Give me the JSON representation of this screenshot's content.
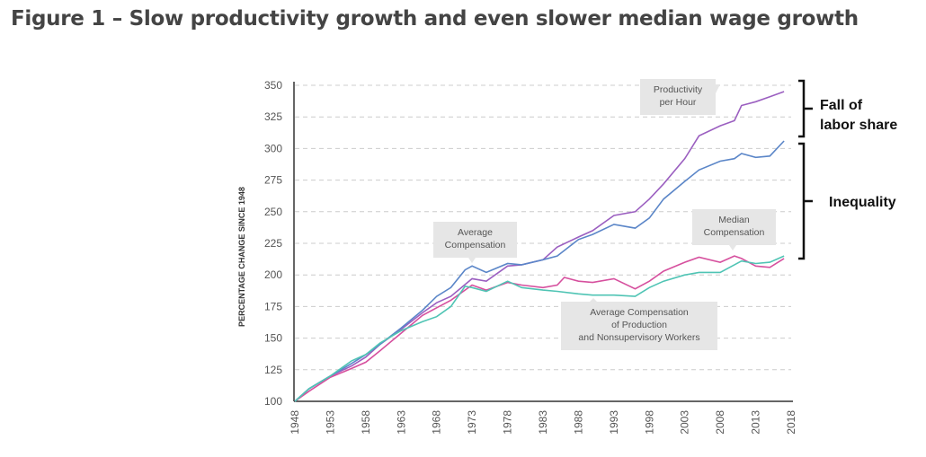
{
  "title": "Figure 1 – Slow productivity growth and even slower median wage growth",
  "chart_data": {
    "type": "line",
    "title": "",
    "xlabel": "",
    "ylabel": "PERCENTAGE CHANGE SINCE 1948",
    "xlim": [
      1948,
      2018
    ],
    "ylim": [
      100,
      350
    ],
    "xticks": [
      "1948",
      "1953",
      "1958",
      "1963",
      "1968",
      "1973",
      "1978",
      "1983",
      "1988",
      "1993",
      "1998",
      "2003",
      "2008",
      "2013",
      "2018"
    ],
    "yticks": [
      "100",
      "125",
      "150",
      "175",
      "200",
      "225",
      "250",
      "275",
      "300",
      "325",
      "350"
    ],
    "grid": "horizontal dashed",
    "series": [
      {
        "name": "Productivity per Hour",
        "color": "#9b5fc0",
        "x": [
          1948,
          1950,
          1953,
          1956,
          1958,
          1960,
          1963,
          1966,
          1968,
          1970,
          1973,
          1975,
          1978,
          1980,
          1983,
          1985,
          1988,
          1990,
          1993,
          1996,
          1998,
          2000,
          2003,
          2005,
          2008,
          2010,
          2011,
          2013,
          2015,
          2017
        ],
        "y": [
          100,
          110,
          120,
          128,
          135,
          145,
          157,
          170,
          178,
          183,
          197,
          195,
          207,
          208,
          212,
          222,
          230,
          235,
          247,
          250,
          260,
          272,
          292,
          310,
          318,
          322,
          334,
          337,
          341,
          345
        ]
      },
      {
        "name": "Average Compensation",
        "color": "#5b86c8",
        "x": [
          1948,
          1950,
          1953,
          1956,
          1958,
          1960,
          1963,
          1966,
          1968,
          1970,
          1972,
          1973,
          1975,
          1978,
          1980,
          1983,
          1985,
          1988,
          1990,
          1993,
          1996,
          1998,
          2000,
          2003,
          2005,
          2008,
          2010,
          2011,
          2013,
          2015,
          2017
        ],
        "y": [
          100,
          110,
          120,
          130,
          137,
          145,
          158,
          172,
          183,
          190,
          204,
          207,
          202,
          209,
          208,
          212,
          215,
          228,
          232,
          240,
          237,
          245,
          260,
          274,
          283,
          290,
          292,
          296,
          293,
          294,
          306
        ]
      },
      {
        "name": "Median Compensation",
        "color": "#d6509e",
        "x": [
          1948,
          1950,
          1953,
          1956,
          1958,
          1960,
          1963,
          1966,
          1968,
          1970,
          1973,
          1975,
          1978,
          1980,
          1983,
          1985,
          1986,
          1988,
          1990,
          1993,
          1996,
          1998,
          2000,
          2003,
          2005,
          2008,
          2010,
          2011,
          2013,
          2015,
          2017
        ],
        "y": [
          100,
          108,
          119,
          126,
          131,
          140,
          154,
          168,
          174,
          180,
          192,
          188,
          194,
          192,
          190,
          192,
          198,
          195,
          194,
          197,
          189,
          195,
          203,
          210,
          214,
          210,
          215,
          213,
          207,
          206,
          213
        ]
      },
      {
        "name": "Average Compensation of Production and Nonsupervisory Workers",
        "color": "#4fc4b4",
        "x": [
          1948,
          1950,
          1953,
          1956,
          1958,
          1960,
          1963,
          1966,
          1968,
          1970,
          1972,
          1973,
          1975,
          1978,
          1980,
          1983,
          1985,
          1988,
          1990,
          1993,
          1996,
          1998,
          2000,
          2003,
          2005,
          2008,
          2010,
          2011,
          2013,
          2015,
          2017
        ],
        "y": [
          100,
          110,
          120,
          132,
          137,
          146,
          156,
          163,
          167,
          175,
          191,
          190,
          187,
          195,
          190,
          188,
          187,
          185,
          184,
          184,
          183,
          190,
          195,
          200,
          202,
          202,
          208,
          211,
          209,
          210,
          215
        ]
      }
    ],
    "annotations": [
      {
        "lines": [
          "Productivity",
          "per Hour"
        ]
      },
      {
        "lines": [
          "Average",
          "Compensation"
        ]
      },
      {
        "lines": [
          "Median",
          "Compensation"
        ]
      },
      {
        "lines": [
          "Average Compensation",
          "of Production",
          "and Nonsupervisory Workers"
        ]
      },
      {
        "lines": [
          "Fall of",
          "labor share"
        ]
      },
      {
        "lines": [
          "Inequality"
        ]
      }
    ]
  }
}
